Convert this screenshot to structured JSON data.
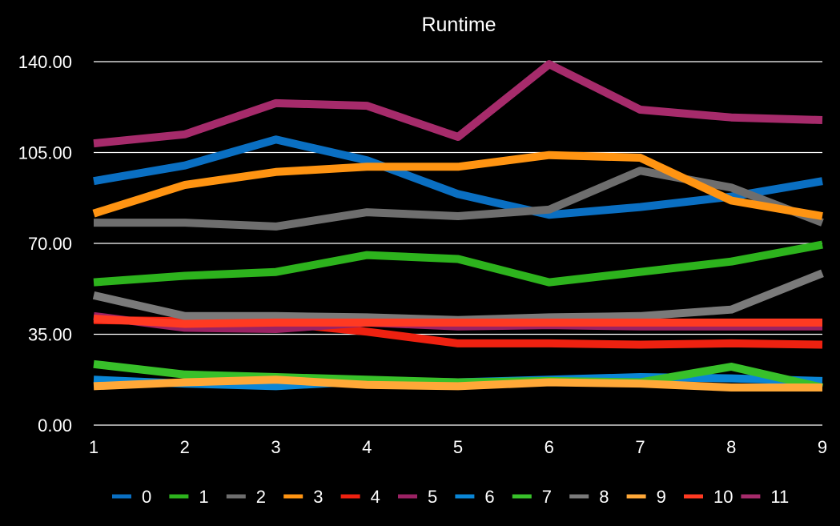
{
  "chart_data": {
    "type": "line",
    "title": "Runtime",
    "xlabel": "",
    "ylabel": "",
    "x": [
      1,
      2,
      3,
      4,
      5,
      6,
      7,
      8,
      9
    ],
    "x_tick_labels": [
      "1",
      "2",
      "3",
      "4",
      "5",
      "6",
      "7",
      "8",
      "9"
    ],
    "ylim": [
      0,
      140
    ],
    "y_ticks": [
      0,
      35,
      70,
      105,
      140
    ],
    "y_tick_labels": [
      "0.00",
      "35.00",
      "70.00",
      "105.00",
      "140.00"
    ],
    "grid": true,
    "legend_position": "bottom",
    "series": [
      {
        "name": "0",
        "color": "#0a6fc2",
        "values": [
          94,
          100,
          110,
          102,
          89,
          81,
          84,
          88,
          94
        ]
      },
      {
        "name": "1",
        "color": "#2db31d",
        "values": [
          55,
          57.5,
          59,
          65.5,
          64,
          55,
          59,
          63,
          69.5
        ]
      },
      {
        "name": "2",
        "color": "#6e6e6e",
        "values": [
          78,
          78,
          76.5,
          82,
          80.5,
          83,
          98,
          91.5,
          78
        ]
      },
      {
        "name": "3",
        "color": "#ff9412",
        "values": [
          81.5,
          92.5,
          97.5,
          99.5,
          99.5,
          104,
          103,
          86.5,
          80.5
        ]
      },
      {
        "name": "4",
        "color": "#ee2110",
        "values": [
          40.5,
          40,
          39.5,
          36,
          31.5,
          31.5,
          31,
          31.5,
          31
        ]
      },
      {
        "name": "5",
        "color": "#9b2264",
        "values": [
          42,
          37.5,
          37,
          39.5,
          38,
          38.5,
          38,
          38,
          38
        ]
      },
      {
        "name": "6",
        "color": "#0a86d6",
        "values": [
          17.5,
          16,
          15,
          17,
          16.5,
          17.5,
          18.5,
          18,
          17
        ]
      },
      {
        "name": "7",
        "color": "#38c02a",
        "values": [
          23.5,
          19.5,
          18.5,
          17.5,
          16.5,
          17,
          16.5,
          22.5,
          14.5
        ]
      },
      {
        "name": "8",
        "color": "#7a7a7a",
        "values": [
          50,
          42,
          42,
          41.5,
          40.5,
          41.5,
          42,
          44.5,
          58.5
        ]
      },
      {
        "name": "9",
        "color": "#ffa838",
        "values": [
          15,
          16.5,
          17.5,
          15.5,
          15,
          16.5,
          16,
          14.5,
          14.5
        ]
      },
      {
        "name": "10",
        "color": "#ff3a22",
        "values": [
          41,
          39,
          39.5,
          39.5,
          39.5,
          39.5,
          39.5,
          39.5,
          39.5
        ]
      },
      {
        "name": "11",
        "color": "#a62b6b",
        "values": [
          108.5,
          112,
          124,
          123,
          111,
          139,
          121.5,
          118.5,
          117.5
        ]
      }
    ]
  }
}
